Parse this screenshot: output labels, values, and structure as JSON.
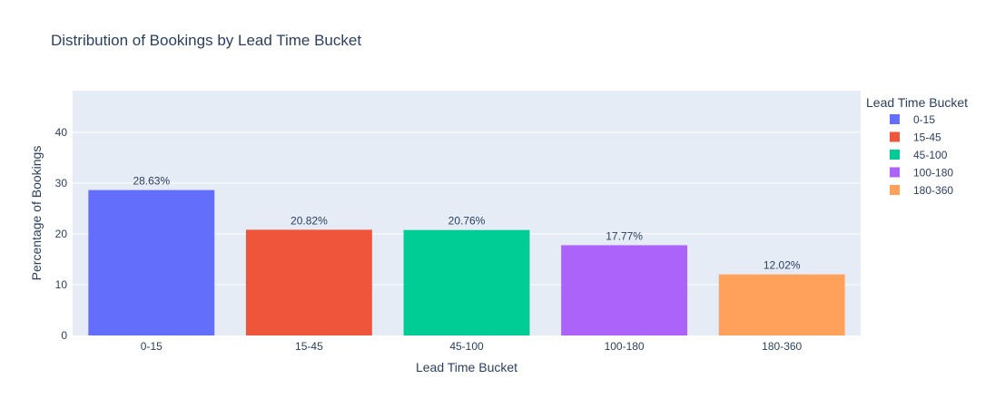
{
  "chart_data": {
    "type": "bar",
    "title": "Distribution of Bookings by Lead Time Bucket",
    "xlabel": "Lead Time Bucket",
    "ylabel": "Percentage of Bookings",
    "categories": [
      "0-15",
      "15-45",
      "45-100",
      "100-180",
      "180-360"
    ],
    "values": [
      28.63,
      20.82,
      20.76,
      17.77,
      12.02
    ],
    "labels": [
      "28.63%",
      "20.82%",
      "20.76%",
      "17.77%",
      "12.02%"
    ],
    "colors": [
      "#636efa",
      "#ef553b",
      "#00cc96",
      "#ab63fa",
      "#ffa15a"
    ],
    "ylim": [
      0,
      48.2
    ],
    "yticks": [
      0,
      10,
      20,
      30,
      40
    ],
    "grid": true,
    "legend": {
      "title": "Lead Time Bucket",
      "placement": "right",
      "items": [
        "0-15",
        "15-45",
        "45-100",
        "100-180",
        "180-360"
      ]
    },
    "plot_bg": "#e5ecf6"
  }
}
